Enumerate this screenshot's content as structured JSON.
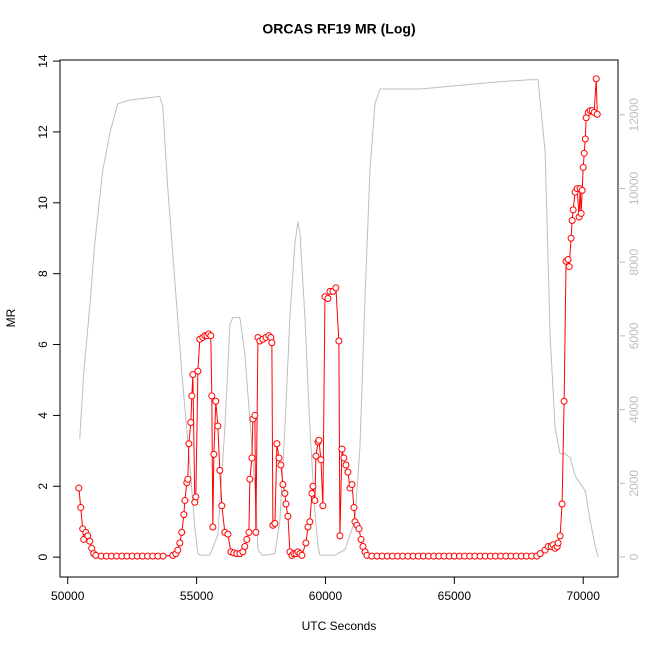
{
  "chart_data": {
    "type": "line",
    "title": "ORCAS RF19 MR (Log)",
    "xlabel": "UTC Seconds",
    "ylabel": "MR",
    "xlim": [
      49700,
      71350
    ],
    "ylim": [
      -0.56,
      14.03
    ],
    "y2lim": [
      -543,
      13487
    ],
    "xticks": [
      50000,
      55000,
      60000,
      65000,
      70000
    ],
    "yticks": [
      0,
      2,
      4,
      6,
      8,
      10,
      12,
      14
    ],
    "y2ticks": [
      0,
      2000,
      4000,
      6000,
      8000,
      10000,
      12000
    ],
    "series": [
      {
        "color": "#bebebe",
        "axis": "y2",
        "markers": false,
        "x": [
          50466,
          50621,
          50854,
          51048,
          51359,
          51476,
          51631,
          51825,
          51942,
          52407,
          52990,
          53572,
          53689,
          53883,
          54155,
          54427,
          54738,
          54931,
          55048,
          55126,
          55320,
          55514,
          55825,
          56096,
          56290,
          56407,
          56679,
          56873,
          57145,
          57300,
          57378,
          57533,
          57766,
          58038,
          58232,
          58426,
          58620,
          58814,
          58931,
          59009,
          59203,
          59397,
          59591,
          59708,
          59786,
          60368,
          60756,
          61144,
          61338,
          61532,
          61727,
          61921,
          62115,
          62892,
          63668,
          65221,
          66775,
          67939,
          68250,
          68522,
          68716,
          68910,
          69104,
          69299,
          69493,
          69687,
          69881,
          70075,
          70269,
          70463,
          70580
        ],
        "values": [
          3200,
          5000,
          6800,
          8500,
          10500,
          10900,
          11500,
          12000,
          12300,
          12400,
          12450,
          12500,
          12200,
          10000,
          7500,
          5000,
          2500,
          800,
          100,
          50,
          50,
          50,
          600,
          3500,
          6300,
          6500,
          6500,
          5500,
          3000,
          1500,
          200,
          50,
          50,
          100,
          1000,
          3500,
          6500,
          8500,
          9100,
          8800,
          6500,
          3500,
          1200,
          300,
          50,
          50,
          200,
          1000,
          3000,
          7000,
          10500,
          12300,
          12700,
          12700,
          12700,
          12800,
          12900,
          12950,
          12950,
          11000,
          6000,
          3500,
          2800,
          2800,
          2700,
          2200,
          2000,
          1800,
          1000,
          300,
          0
        ]
      },
      {
        "color": "#ff0000",
        "axis": "y",
        "markers": true,
        "x": [
          50430,
          50505,
          50580,
          50620,
          50700,
          50775,
          50855,
          50930,
          51010,
          51090,
          51300,
          51500,
          51700,
          51900,
          52100,
          52300,
          52500,
          52700,
          52900,
          53100,
          53300,
          53500,
          53700,
          54080,
          54195,
          54270,
          54350,
          54425,
          54505,
          54545,
          54620,
          54660,
          54700,
          54775,
          54815,
          54855,
          54930,
          54970,
          55050,
          55125,
          55240,
          55320,
          55400,
          55475,
          55550,
          55590,
          55630,
          55670,
          55745,
          55825,
          55900,
          55980,
          56095,
          56215,
          56330,
          56445,
          56560,
          56680,
          56795,
          56870,
          56950,
          57030,
          57065,
          57145,
          57185,
          57260,
          57300,
          57380,
          57455,
          57570,
          57690,
          57805,
          57880,
          57920,
          57960,
          58040,
          58115,
          58195,
          58270,
          58350,
          58425,
          58465,
          58545,
          58620,
          58700,
          58775,
          58855,
          58930,
          59010,
          59085,
          59240,
          59320,
          59395,
          59475,
          59515,
          59590,
          59630,
          59710,
          59745,
          59825,
          59900,
          59980,
          60095,
          60175,
          60290,
          60405,
          60520,
          60560,
          60640,
          60715,
          60795,
          60870,
          60950,
          61030,
          61105,
          61145,
          61220,
          61300,
          61380,
          61455,
          61535,
          61610,
          61800,
          62000,
          62200,
          62400,
          62600,
          62800,
          63000,
          63200,
          63400,
          63600,
          63800,
          64000,
          64200,
          64400,
          64600,
          64800,
          65000,
          65200,
          65400,
          65600,
          65800,
          66000,
          66200,
          66400,
          66600,
          66800,
          67000,
          67200,
          67400,
          67600,
          67800,
          68000,
          68200,
          68330,
          68520,
          68640,
          68755,
          68835,
          68910,
          68990,
          69025,
          69105,
          69180,
          69260,
          69335,
          69415,
          69455,
          69530,
          69570,
          69610,
          69685,
          69765,
          69840,
          69880,
          69920,
          69960,
          70000,
          70040,
          70080,
          70115,
          70195,
          70270,
          70350,
          70425,
          70505,
          70545
        ],
        "values": [
          1.95,
          1.4,
          0.8,
          0.5,
          0.7,
          0.6,
          0.45,
          0.25,
          0.1,
          0.05,
          0.03,
          0.03,
          0.03,
          0.03,
          0.03,
          0.03,
          0.03,
          0.03,
          0.03,
          0.03,
          0.03,
          0.03,
          0.03,
          0.05,
          0.1,
          0.2,
          0.4,
          0.7,
          1.2,
          1.6,
          2.1,
          2.2,
          3.2,
          3.8,
          4.55,
          5.15,
          1.55,
          1.7,
          5.25,
          6.15,
          6.2,
          6.25,
          6.25,
          6.3,
          6.25,
          4.55,
          0.85,
          2.9,
          4.4,
          3.7,
          2.45,
          1.45,
          0.7,
          0.65,
          0.15,
          0.12,
          0.1,
          0.1,
          0.15,
          0.3,
          0.5,
          0.7,
          2.2,
          2.8,
          3.9,
          4.0,
          0.7,
          6.2,
          6.1,
          6.15,
          6.2,
          6.25,
          6.2,
          6.05,
          0.9,
          0.95,
          3.2,
          2.8,
          2.6,
          2.05,
          1.8,
          1.5,
          1.15,
          0.15,
          0.05,
          0.1,
          0.1,
          0.15,
          0.1,
          0.05,
          0.4,
          0.85,
          1.0,
          1.8,
          2.0,
          1.6,
          2.85,
          3.25,
          3.3,
          2.75,
          1.45,
          7.35,
          7.3,
          7.5,
          7.5,
          7.6,
          6.1,
          0.6,
          3.05,
          2.8,
          2.6,
          2.4,
          1.95,
          2.05,
          1.4,
          1.0,
          0.9,
          0.8,
          0.5,
          0.3,
          0.15,
          0.05,
          0.03,
          0.03,
          0.03,
          0.03,
          0.03,
          0.03,
          0.03,
          0.03,
          0.03,
          0.03,
          0.03,
          0.03,
          0.03,
          0.03,
          0.03,
          0.03,
          0.03,
          0.03,
          0.03,
          0.03,
          0.03,
          0.03,
          0.03,
          0.03,
          0.03,
          0.03,
          0.03,
          0.03,
          0.03,
          0.03,
          0.03,
          0.03,
          0.03,
          0.1,
          0.2,
          0.3,
          0.3,
          0.35,
          0.25,
          0.3,
          0.4,
          0.6,
          1.5,
          4.4,
          8.35,
          8.4,
          8.2,
          9.0,
          9.5,
          9.8,
          10.3,
          10.4,
          9.6,
          10.4,
          9.7,
          10.35,
          11.0,
          11.4,
          11.8,
          12.4,
          12.55,
          12.6,
          12.6,
          12.55,
          13.5,
          12.5
        ]
      }
    ]
  }
}
